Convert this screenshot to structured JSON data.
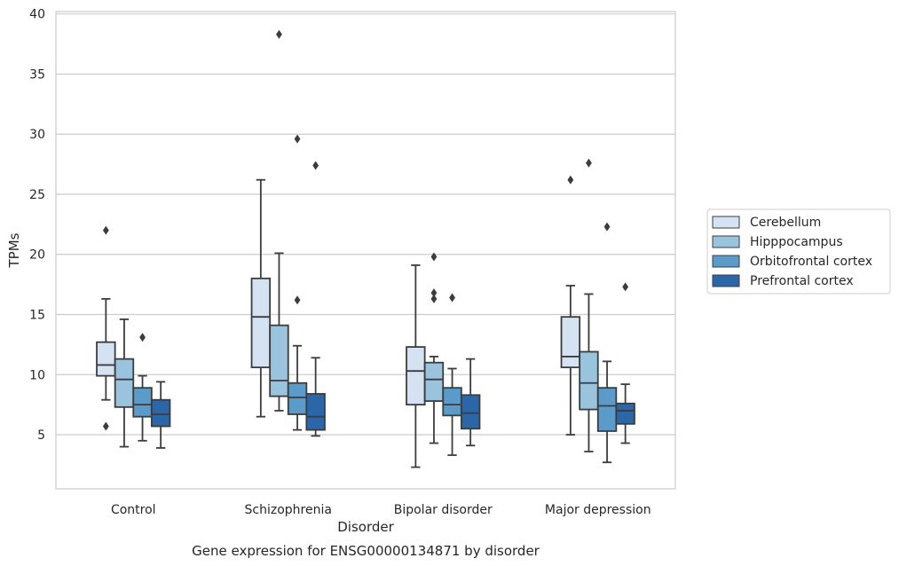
{
  "chart_data": {
    "type": "box",
    "caption": "Gene expression for ENSG00000134871 by disorder",
    "xlabel": "Disorder",
    "ylabel": "TPMs",
    "ylim": [
      0.5,
      40.2
    ],
    "yticks": [
      5,
      10,
      15,
      20,
      25,
      30,
      35,
      40
    ],
    "grid": "horizontal",
    "legend_position": "right",
    "categories": [
      "Control",
      "Schizophrenia",
      "Bipolar disorder",
      "Major depression"
    ],
    "series": [
      {
        "name": "Cerebellum",
        "color": "#d4e2f1",
        "boxes": [
          {
            "whisker_low": 7.9,
            "q1": 9.9,
            "median": 10.8,
            "q3": 12.7,
            "whisker_high": 16.3,
            "outliers": [
              22.0,
              5.7
            ]
          },
          {
            "whisker_low": 6.5,
            "q1": 10.6,
            "median": 14.8,
            "q3": 18.0,
            "whisker_high": 26.2,
            "outliers": []
          },
          {
            "whisker_low": 2.3,
            "q1": 7.5,
            "median": 10.3,
            "q3": 12.3,
            "whisker_high": 19.1,
            "outliers": []
          },
          {
            "whisker_low": 5.0,
            "q1": 10.6,
            "median": 11.5,
            "q3": 14.8,
            "whisker_high": 17.4,
            "outliers": [
              26.2
            ]
          }
        ]
      },
      {
        "name": "Hipppocampus",
        "color": "#9ac3de",
        "boxes": [
          {
            "whisker_low": 4.0,
            "q1": 7.3,
            "median": 9.6,
            "q3": 11.3,
            "whisker_high": 14.6,
            "outliers": []
          },
          {
            "whisker_low": 7.0,
            "q1": 8.2,
            "median": 9.5,
            "q3": 14.1,
            "whisker_high": 20.1,
            "outliers": [
              38.3
            ]
          },
          {
            "whisker_low": 4.3,
            "q1": 7.8,
            "median": 9.6,
            "q3": 11.0,
            "whisker_high": 11.5,
            "outliers": [
              19.8,
              16.8,
              16.3
            ]
          },
          {
            "whisker_low": 3.6,
            "q1": 7.1,
            "median": 9.3,
            "q3": 11.9,
            "whisker_high": 16.7,
            "outliers": [
              27.6
            ]
          }
        ]
      },
      {
        "name": "Orbitofrontal cortex",
        "color": "#5b9bc9",
        "boxes": [
          {
            "whisker_low": 4.5,
            "q1": 6.5,
            "median": 7.5,
            "q3": 8.9,
            "whisker_high": 9.9,
            "outliers": [
              13.1
            ]
          },
          {
            "whisker_low": 5.4,
            "q1": 6.7,
            "median": 8.1,
            "q3": 9.3,
            "whisker_high": 12.4,
            "outliers": [
              29.6,
              16.2
            ]
          },
          {
            "whisker_low": 3.3,
            "q1": 6.6,
            "median": 7.5,
            "q3": 8.9,
            "whisker_high": 10.5,
            "outliers": [
              16.4
            ]
          },
          {
            "whisker_low": 2.7,
            "q1": 5.3,
            "median": 7.4,
            "q3": 8.9,
            "whisker_high": 11.1,
            "outliers": [
              22.3
            ]
          }
        ]
      },
      {
        "name": "Prefrontal cortex",
        "color": "#2b67a8",
        "boxes": [
          {
            "whisker_low": 3.9,
            "q1": 5.7,
            "median": 6.7,
            "q3": 7.9,
            "whisker_high": 9.4,
            "outliers": []
          },
          {
            "whisker_low": 4.9,
            "q1": 5.4,
            "median": 6.5,
            "q3": 8.4,
            "whisker_high": 11.4,
            "outliers": [
              27.4
            ]
          },
          {
            "whisker_low": 4.1,
            "q1": 5.5,
            "median": 6.8,
            "q3": 8.3,
            "whisker_high": 11.3,
            "outliers": []
          },
          {
            "whisker_low": 4.3,
            "q1": 5.9,
            "median": 7.0,
            "q3": 7.6,
            "whisker_high": 9.2,
            "outliers": [
              17.3
            ]
          }
        ]
      }
    ]
  }
}
